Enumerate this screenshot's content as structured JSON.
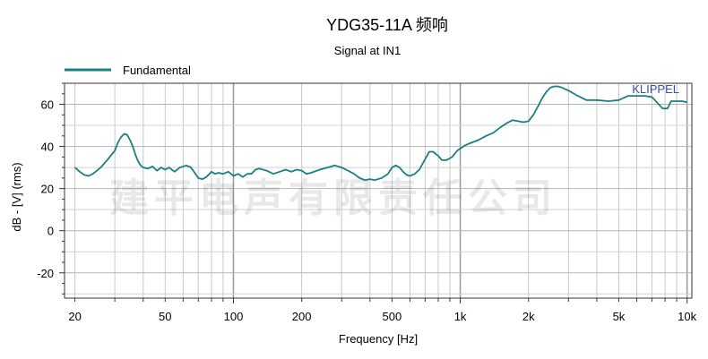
{
  "chart_data": {
    "type": "line",
    "title": "YDG35-11A 频响",
    "subtitle": "Signal at IN1",
    "xlabel": "Frequency [Hz]",
    "ylabel": "dB - [V] (rms)",
    "x_scale": "log",
    "xlim": [
      18,
      10500
    ],
    "ylim": [
      -32,
      70
    ],
    "x_ticks": [
      {
        "value": 20,
        "label": "20"
      },
      {
        "value": 50,
        "label": "50"
      },
      {
        "value": 100,
        "label": "100"
      },
      {
        "value": 200,
        "label": "200"
      },
      {
        "value": 500,
        "label": "500"
      },
      {
        "value": 1000,
        "label": "1k"
      },
      {
        "value": 2000,
        "label": "2k"
      },
      {
        "value": 5000,
        "label": "5k"
      },
      {
        "value": 10000,
        "label": "10k"
      }
    ],
    "y_ticks": [
      60,
      40,
      20,
      0,
      -20
    ],
    "grid": true,
    "legend_position": "top-left",
    "series": [
      {
        "name": "Fundamental",
        "color": "#1a8080",
        "points": [
          [
            20,
            30
          ],
          [
            21,
            28
          ],
          [
            22,
            26.5
          ],
          [
            23,
            26
          ],
          [
            24,
            27
          ],
          [
            26,
            30
          ],
          [
            28,
            34
          ],
          [
            30,
            38
          ],
          [
            31,
            42
          ],
          [
            32,
            44.5
          ],
          [
            33,
            46
          ],
          [
            34,
            45.5
          ],
          [
            35,
            43
          ],
          [
            36,
            40
          ],
          [
            37,
            36
          ],
          [
            38,
            33
          ],
          [
            39,
            31
          ],
          [
            40,
            30
          ],
          [
            42,
            29.5
          ],
          [
            44,
            30.5
          ],
          [
            46,
            28.5
          ],
          [
            48,
            30
          ],
          [
            50,
            29
          ],
          [
            52,
            30
          ],
          [
            55,
            28
          ],
          [
            58,
            30
          ],
          [
            62,
            31
          ],
          [
            65,
            30
          ],
          [
            68,
            27
          ],
          [
            70,
            25
          ],
          [
            73,
            24.5
          ],
          [
            76,
            25.5
          ],
          [
            80,
            28
          ],
          [
            83,
            27
          ],
          [
            86,
            27.5
          ],
          [
            90,
            27
          ],
          [
            95,
            28
          ],
          [
            100,
            26
          ],
          [
            105,
            27
          ],
          [
            110,
            25.5
          ],
          [
            115,
            27
          ],
          [
            120,
            27
          ],
          [
            125,
            29
          ],
          [
            130,
            29.5
          ],
          [
            140,
            28.5
          ],
          [
            150,
            27
          ],
          [
            160,
            28
          ],
          [
            170,
            29
          ],
          [
            180,
            28
          ],
          [
            190,
            29
          ],
          [
            200,
            28.5
          ],
          [
            210,
            27
          ],
          [
            220,
            27.5
          ],
          [
            240,
            29
          ],
          [
            260,
            30
          ],
          [
            280,
            31
          ],
          [
            300,
            30
          ],
          [
            320,
            28.5
          ],
          [
            340,
            27
          ],
          [
            360,
            25
          ],
          [
            380,
            24
          ],
          [
            400,
            24.5
          ],
          [
            420,
            24
          ],
          [
            450,
            25
          ],
          [
            480,
            27
          ],
          [
            500,
            30
          ],
          [
            520,
            31
          ],
          [
            540,
            30
          ],
          [
            560,
            28
          ],
          [
            580,
            26.5
          ],
          [
            600,
            26
          ],
          [
            630,
            27
          ],
          [
            660,
            29
          ],
          [
            700,
            34
          ],
          [
            730,
            37.5
          ],
          [
            760,
            37.5
          ],
          [
            800,
            35.5
          ],
          [
            830,
            33.5
          ],
          [
            870,
            33.5
          ],
          [
            920,
            35
          ],
          [
            970,
            38
          ],
          [
            1000,
            39
          ],
          [
            1050,
            40.5
          ],
          [
            1100,
            41.5
          ],
          [
            1200,
            43
          ],
          [
            1300,
            45
          ],
          [
            1400,
            46.5
          ],
          [
            1500,
            49
          ],
          [
            1600,
            51
          ],
          [
            1700,
            52.5
          ],
          [
            1800,
            52
          ],
          [
            1900,
            51.5
          ],
          [
            2000,
            52
          ],
          [
            2100,
            55
          ],
          [
            2200,
            59
          ],
          [
            2300,
            63
          ],
          [
            2400,
            66
          ],
          [
            2500,
            68
          ],
          [
            2600,
            68.5
          ],
          [
            2700,
            68.5
          ],
          [
            2800,
            68
          ],
          [
            3000,
            66.5
          ],
          [
            3300,
            64
          ],
          [
            3600,
            62
          ],
          [
            4000,
            62
          ],
          [
            4500,
            61.5
          ],
          [
            5000,
            62
          ],
          [
            5500,
            64
          ],
          [
            6000,
            64
          ],
          [
            6500,
            64
          ],
          [
            7000,
            63.5
          ],
          [
            7500,
            60
          ],
          [
            7800,
            58
          ],
          [
            8200,
            58
          ],
          [
            8500,
            61.5
          ],
          [
            9000,
            61.5
          ],
          [
            9500,
            61.5
          ],
          [
            10000,
            61
          ]
        ]
      }
    ],
    "watermark": "建平电声有限责任公司",
    "brand_label": "KLIPPEL"
  }
}
